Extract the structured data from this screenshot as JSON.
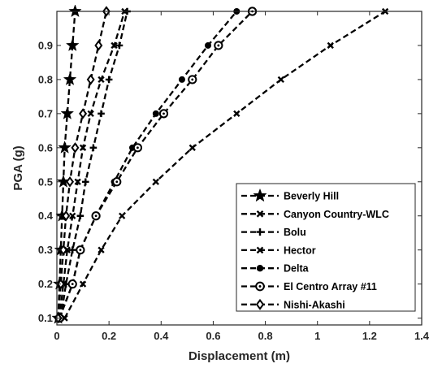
{
  "chart_data": {
    "type": "line",
    "xlabel": "Displacement (m)",
    "ylabel": "PGA (g)",
    "xlim": [
      0,
      1.4
    ],
    "ylim": [
      0.08,
      1.0
    ],
    "xticks": [
      "0",
      "0.2",
      "0.4",
      "0.6",
      "0.8",
      "1",
      "1.2",
      "1.4"
    ],
    "yticks": [
      "0.1",
      "0.2",
      "0.3",
      "0.4",
      "0.5",
      "0.6",
      "0.7",
      "0.8",
      "0.9"
    ],
    "grid": false,
    "legend_position": "bottom-right",
    "line_style": "dashed",
    "line_color": "#000000",
    "y": [
      0.1,
      0.2,
      0.3,
      0.4,
      0.5,
      0.6,
      0.7,
      0.8,
      0.9,
      1.0
    ],
    "series": [
      {
        "name": "Beverly Hill",
        "marker": "star",
        "x": [
          0.005,
          0.01,
          0.015,
          0.02,
          0.025,
          0.03,
          0.04,
          0.05,
          0.06,
          0.07
        ]
      },
      {
        "name": "Canyon Country-WLC",
        "marker": "x",
        "x": [
          0.01,
          0.025,
          0.04,
          0.06,
          0.08,
          0.1,
          0.13,
          0.17,
          0.22,
          0.26
        ]
      },
      {
        "name": "Bolu",
        "marker": "plus",
        "x": [
          0.015,
          0.035,
          0.06,
          0.09,
          0.11,
          0.14,
          0.17,
          0.2,
          0.24,
          0.27
        ]
      },
      {
        "name": "Hector",
        "marker": "x",
        "x": [
          0.03,
          0.1,
          0.17,
          0.25,
          0.38,
          0.52,
          0.69,
          0.86,
          1.05,
          1.26
        ]
      },
      {
        "name": "Delta",
        "marker": "dot",
        "x": [
          0.01,
          0.06,
          0.09,
          0.15,
          0.22,
          0.29,
          0.38,
          0.48,
          0.58,
          0.69
        ]
      },
      {
        "name": "El Centro Array #11",
        "marker": "circle-dot",
        "x": [
          0.01,
          0.06,
          0.09,
          0.15,
          0.23,
          0.31,
          0.41,
          0.52,
          0.62,
          0.75
        ]
      },
      {
        "name": "Nishi-Akashi",
        "marker": "diamond",
        "x": [
          0.005,
          0.015,
          0.025,
          0.035,
          0.05,
          0.07,
          0.1,
          0.13,
          0.16,
          0.19
        ]
      }
    ]
  }
}
